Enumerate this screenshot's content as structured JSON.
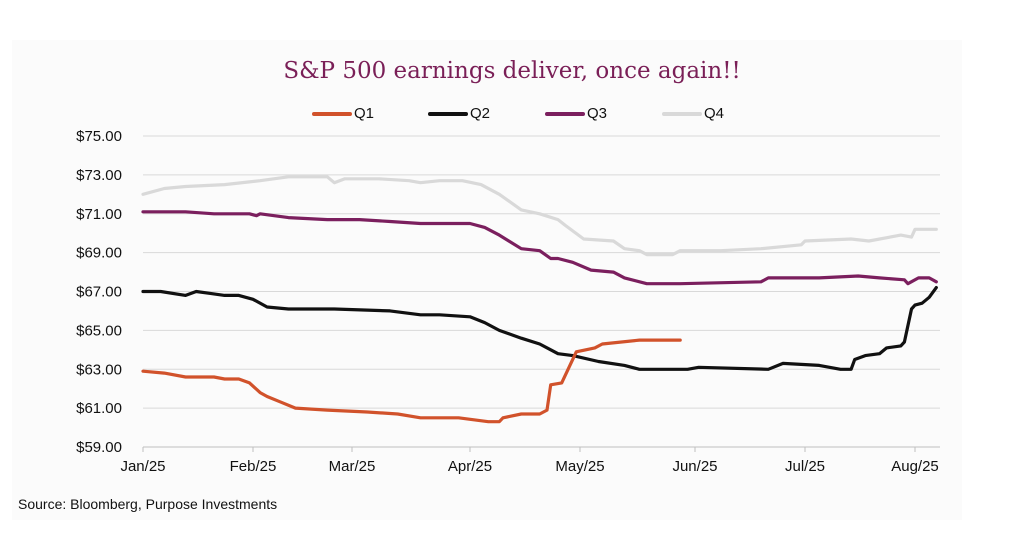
{
  "chart_data": {
    "type": "line",
    "title": "S&P 500 earnings deliver, once again!!",
    "xlabel": "",
    "ylabel": "",
    "ylim": [
      59,
      75
    ],
    "y_ticks": [
      "$59.00",
      "$61.00",
      "$63.00",
      "$65.00",
      "$67.00",
      "$69.00",
      "$71.00",
      "$73.00",
      "$75.00"
    ],
    "x_ticks": [
      "Jan/25",
      "Feb/25",
      "Mar/25",
      "Apr/25",
      "May/25",
      "Jun/25",
      "Jul/25",
      "Aug/25"
    ],
    "grid": "horizontal",
    "legend_position": "top",
    "source": "Source: Bloomberg, Purpose Investments",
    "series": [
      {
        "name": "Q1",
        "color": "#d1522b",
        "points": [
          [
            "2025-01-01",
            62.9
          ],
          [
            "2025-01-07",
            62.8
          ],
          [
            "2025-01-13",
            62.6
          ],
          [
            "2025-01-21",
            62.6
          ],
          [
            "2025-01-24",
            62.5
          ],
          [
            "2025-01-28",
            62.5
          ],
          [
            "2025-01-31",
            62.3
          ],
          [
            "2025-02-03",
            61.8
          ],
          [
            "2025-02-05",
            61.6
          ],
          [
            "2025-02-09",
            61.3
          ],
          [
            "2025-02-13",
            61.0
          ],
          [
            "2025-02-22",
            60.9
          ],
          [
            "2025-03-05",
            60.8
          ],
          [
            "2025-03-13",
            60.7
          ],
          [
            "2025-03-19",
            60.5
          ],
          [
            "2025-03-29",
            60.5
          ],
          [
            "2025-04-06",
            60.3
          ],
          [
            "2025-04-09",
            60.3
          ],
          [
            "2025-04-10",
            60.5
          ],
          [
            "2025-04-15",
            60.7
          ],
          [
            "2025-04-20",
            60.7
          ],
          [
            "2025-04-22",
            60.9
          ],
          [
            "2025-04-23",
            62.2
          ],
          [
            "2025-04-26",
            62.3
          ],
          [
            "2025-04-30",
            63.9
          ],
          [
            "2025-05-05",
            64.1
          ],
          [
            "2025-05-07",
            64.3
          ],
          [
            "2025-05-17",
            64.5
          ],
          [
            "2025-05-28",
            64.5
          ]
        ]
      },
      {
        "name": "Q2",
        "color": "#111111",
        "points": [
          [
            "2025-01-01",
            67.0
          ],
          [
            "2025-01-06",
            67.0
          ],
          [
            "2025-01-13",
            66.8
          ],
          [
            "2025-01-16",
            67.0
          ],
          [
            "2025-01-20",
            66.9
          ],
          [
            "2025-01-24",
            66.8
          ],
          [
            "2025-01-28",
            66.8
          ],
          [
            "2025-02-01",
            66.6
          ],
          [
            "2025-02-05",
            66.2
          ],
          [
            "2025-02-11",
            66.1
          ],
          [
            "2025-02-24",
            66.1
          ],
          [
            "2025-03-11",
            66.0
          ],
          [
            "2025-03-19",
            65.8
          ],
          [
            "2025-03-24",
            65.8
          ],
          [
            "2025-04-01",
            65.7
          ],
          [
            "2025-04-05",
            65.4
          ],
          [
            "2025-04-09",
            65.0
          ],
          [
            "2025-04-15",
            64.6
          ],
          [
            "2025-04-20",
            64.3
          ],
          [
            "2025-04-23",
            64.0
          ],
          [
            "2025-04-25",
            63.8
          ],
          [
            "2025-04-29",
            63.7
          ],
          [
            "2025-05-06",
            63.4
          ],
          [
            "2025-05-13",
            63.2
          ],
          [
            "2025-05-17",
            63.0
          ],
          [
            "2025-05-30",
            63.0
          ],
          [
            "2025-06-02",
            63.1
          ],
          [
            "2025-06-21",
            63.0
          ],
          [
            "2025-06-25",
            63.3
          ],
          [
            "2025-07-05",
            63.2
          ],
          [
            "2025-07-11",
            63.0
          ],
          [
            "2025-07-14",
            63.0
          ],
          [
            "2025-07-15",
            63.5
          ],
          [
            "2025-07-18",
            63.7
          ],
          [
            "2025-07-22",
            63.8
          ],
          [
            "2025-07-24",
            64.1
          ],
          [
            "2025-07-28",
            64.2
          ],
          [
            "2025-07-29",
            64.4
          ],
          [
            "2025-07-31",
            66.1
          ],
          [
            "2025-08-01",
            66.3
          ],
          [
            "2025-08-03",
            66.4
          ],
          [
            "2025-08-05",
            66.7
          ],
          [
            "2025-08-07",
            67.2
          ]
        ]
      },
      {
        "name": "Q3",
        "color": "#7b1f5e",
        "points": [
          [
            "2025-01-01",
            71.1
          ],
          [
            "2025-01-07",
            71.1
          ],
          [
            "2025-01-13",
            71.1
          ],
          [
            "2025-01-21",
            71.0
          ],
          [
            "2025-01-28",
            71.0
          ],
          [
            "2025-01-31",
            71.0
          ],
          [
            "2025-02-02",
            70.9
          ],
          [
            "2025-02-03",
            71.0
          ],
          [
            "2025-02-07",
            70.9
          ],
          [
            "2025-02-11",
            70.8
          ],
          [
            "2025-02-22",
            70.7
          ],
          [
            "2025-03-03",
            70.7
          ],
          [
            "2025-03-11",
            70.6
          ],
          [
            "2025-03-19",
            70.5
          ],
          [
            "2025-04-01",
            70.5
          ],
          [
            "2025-04-05",
            70.3
          ],
          [
            "2025-04-09",
            69.9
          ],
          [
            "2025-04-15",
            69.2
          ],
          [
            "2025-04-20",
            69.1
          ],
          [
            "2025-04-23",
            68.7
          ],
          [
            "2025-04-25",
            68.7
          ],
          [
            "2025-04-29",
            68.5
          ],
          [
            "2025-05-04",
            68.1
          ],
          [
            "2025-05-10",
            68.0
          ],
          [
            "2025-05-13",
            67.7
          ],
          [
            "2025-05-19",
            67.4
          ],
          [
            "2025-05-28",
            67.4
          ],
          [
            "2025-06-19",
            67.5
          ],
          [
            "2025-06-21",
            67.7
          ],
          [
            "2025-07-05",
            67.7
          ],
          [
            "2025-07-16",
            67.8
          ],
          [
            "2025-07-22",
            67.7
          ],
          [
            "2025-07-29",
            67.6
          ],
          [
            "2025-07-30",
            67.4
          ],
          [
            "2025-08-02",
            67.7
          ],
          [
            "2025-08-05",
            67.7
          ],
          [
            "2025-08-07",
            67.5
          ]
        ]
      },
      {
        "name": "Q4",
        "color": "#d9d9d9",
        "points": [
          [
            "2025-01-01",
            72.0
          ],
          [
            "2025-01-07",
            72.3
          ],
          [
            "2025-01-13",
            72.4
          ],
          [
            "2025-01-24",
            72.5
          ],
          [
            "2025-02-03",
            72.7
          ],
          [
            "2025-02-11",
            72.9
          ],
          [
            "2025-02-22",
            72.9
          ],
          [
            "2025-02-24",
            72.6
          ],
          [
            "2025-02-27",
            72.8
          ],
          [
            "2025-03-08",
            72.8
          ],
          [
            "2025-03-16",
            72.7
          ],
          [
            "2025-03-19",
            72.6
          ],
          [
            "2025-03-24",
            72.7
          ],
          [
            "2025-03-30",
            72.7
          ],
          [
            "2025-04-04",
            72.5
          ],
          [
            "2025-04-09",
            72.0
          ],
          [
            "2025-04-15",
            71.2
          ],
          [
            "2025-04-20",
            71.0
          ],
          [
            "2025-04-25",
            70.7
          ],
          [
            "2025-04-27",
            70.4
          ],
          [
            "2025-05-02",
            69.7
          ],
          [
            "2025-05-10",
            69.6
          ],
          [
            "2025-05-13",
            69.2
          ],
          [
            "2025-05-17",
            69.1
          ],
          [
            "2025-05-19",
            68.9
          ],
          [
            "2025-05-26",
            68.9
          ],
          [
            "2025-05-28",
            69.1
          ],
          [
            "2025-06-08",
            69.1
          ],
          [
            "2025-06-19",
            69.2
          ],
          [
            "2025-06-30",
            69.4
          ],
          [
            "2025-07-01",
            69.6
          ],
          [
            "2025-07-14",
            69.7
          ],
          [
            "2025-07-19",
            69.6
          ],
          [
            "2025-07-28",
            69.9
          ],
          [
            "2025-07-31",
            69.8
          ],
          [
            "2025-08-01",
            70.2
          ],
          [
            "2025-08-07",
            70.2
          ]
        ]
      }
    ]
  }
}
